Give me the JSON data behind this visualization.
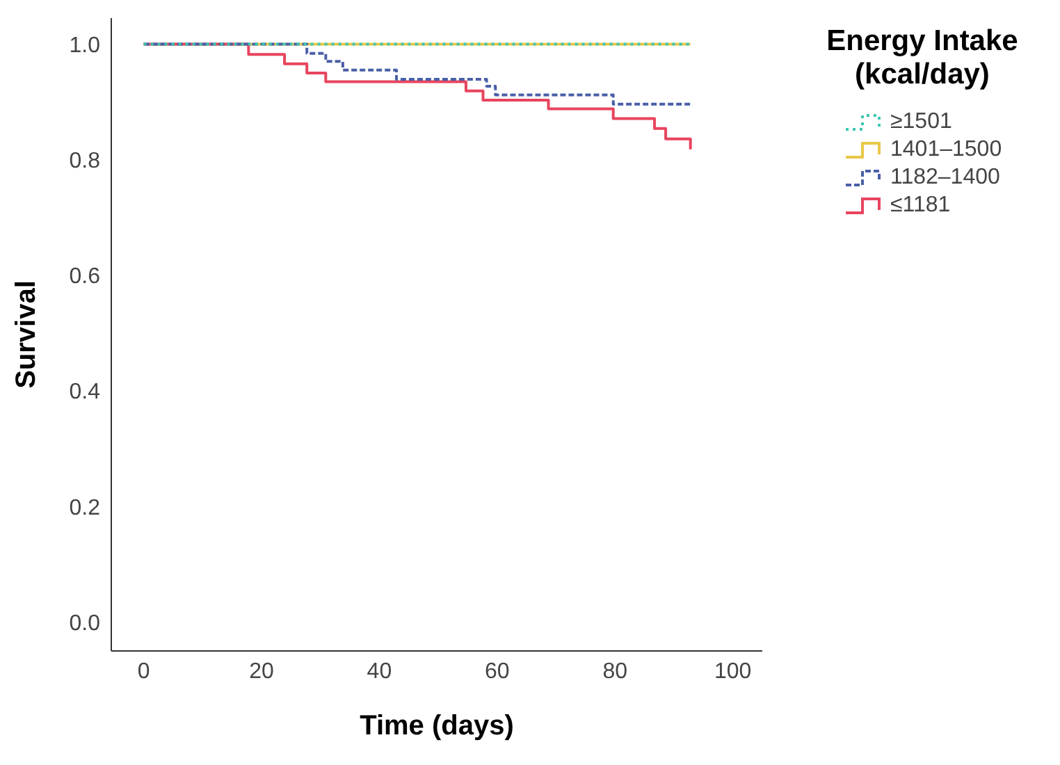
{
  "chart_data": {
    "type": "step",
    "xlabel": "Time (days)",
    "ylabel": "Survival",
    "legend_title": "Energy Intake (kcal/day)",
    "xlim": [
      -5.5,
      105
    ],
    "xticks": [
      0,
      20,
      40,
      60,
      80,
      100
    ],
    "ylim": [
      -0.05,
      1.045
    ],
    "yticks": [
      {
        "value": 0,
        "label": "0.0"
      },
      {
        "value": 0.2,
        "label": "0.2"
      },
      {
        "value": 0.4,
        "label": "0.4"
      },
      {
        "value": 0.6,
        "label": "0.6"
      },
      {
        "value": 0.8,
        "label": "0.8"
      },
      {
        "value": 1,
        "label": "1.0"
      }
    ],
    "grid": false,
    "legend": "top right",
    "series": [
      {
        "name": "≥1501",
        "color": "#3cc8b4",
        "line_style": "dotted",
        "x": [
          0,
          92.8
        ],
        "values": [
          1,
          1
        ]
      },
      {
        "name": "1401–1500",
        "color": "#e8c84a",
        "line_style": "solid",
        "x": [
          0,
          92.8
        ],
        "values": [
          1,
          1
        ]
      },
      {
        "name": "1182–1400",
        "color": "#4a5fa8",
        "line_style": "dashed",
        "x": [
          0,
          27.7,
          30.9,
          33.8,
          42.9,
          58.2,
          59.7,
          79.7,
          92.8
        ],
        "values": [
          1,
          0.984,
          0.97,
          0.955,
          0.939,
          0.927,
          0.912,
          0.896,
          0.896
        ]
      },
      {
        "name": "≤1181",
        "color": "#e8455f",
        "line_style": "solid",
        "x": [
          0,
          17.8,
          23.9,
          27.7,
          30.9,
          54.7,
          57.6,
          68.7,
          79.7,
          86.7,
          88.6,
          92.8
        ],
        "values": [
          1,
          0.982,
          0.966,
          0.95,
          0.935,
          0.919,
          0.903,
          0.888,
          0.871,
          0.854,
          0.836,
          0.818
        ]
      }
    ]
  }
}
